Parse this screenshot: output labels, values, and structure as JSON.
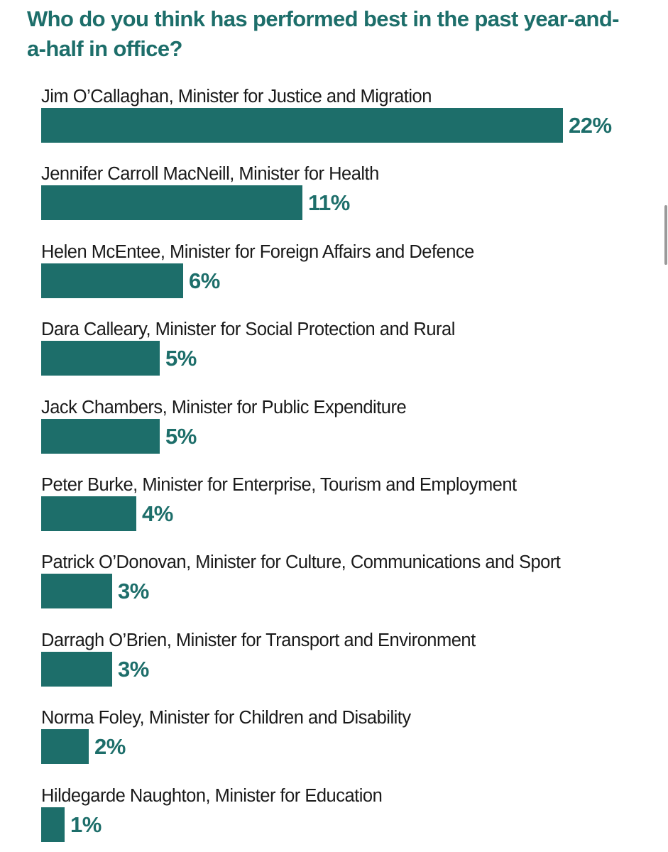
{
  "chart_data": {
    "type": "bar",
    "orientation": "horizontal",
    "title": "Who do you think has performed best in the past year-and-a-half in office?",
    "categories": [
      "Jim O’Callaghan, Minister for Justice and Migration",
      "Jennifer Carroll MacNeill, Minister for Health",
      "Helen McEntee, Minister for Foreign Affairs and Defence",
      "Dara Calleary, Minister for Social Protection and Rural",
      "Jack Chambers, Minister for Public Expenditure",
      "Peter Burke, Minister for Enterprise, Tourism and Employment",
      "Patrick O’Donovan, Minister for Culture, Communications and Sport",
      "Darragh O’Brien, Minister for Transport and Environment",
      "Norma Foley, Minister for Children and Disability",
      "Hildegarde Naughton, Minister for Education"
    ],
    "values": [
      22,
      11,
      6,
      5,
      5,
      4,
      3,
      3,
      2,
      1
    ],
    "value_labels": [
      "22%",
      "11%",
      "6%",
      "5%",
      "5%",
      "4%",
      "3%",
      "3%",
      "2%",
      "1%"
    ],
    "unit": "%",
    "xlim": [
      0,
      22
    ],
    "grid": false,
    "legend": "none",
    "bar_color": "#1d6e6a",
    "label_color": "#1d6e6a",
    "text_color": "#1a1a1a"
  }
}
